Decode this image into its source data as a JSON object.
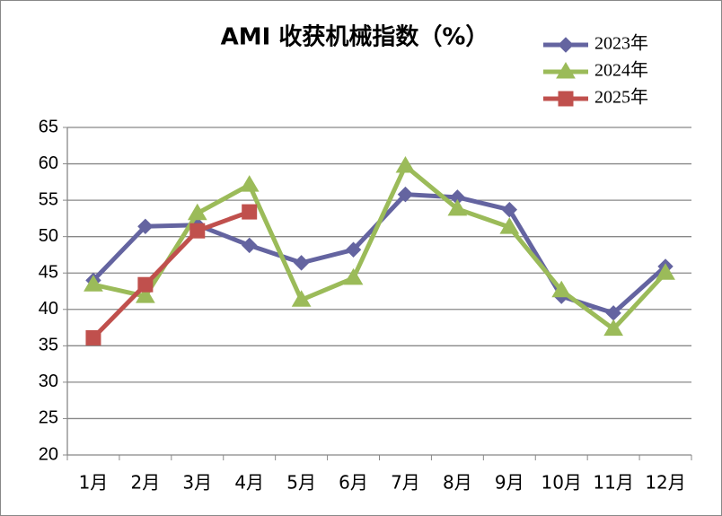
{
  "chart_data": {
    "type": "line",
    "title": "AMI 收获机械指数（%）",
    "categories": [
      "1月",
      "2月",
      "3月",
      "4月",
      "5月",
      "6月",
      "7月",
      "8月",
      "9月",
      "10月",
      "11月",
      "12月"
    ],
    "series": [
      {
        "name": "2023年",
        "color": "#6464a0",
        "marker": "diamond",
        "values": [
          44.0,
          51.4,
          51.6,
          48.8,
          46.4,
          48.2,
          55.8,
          55.4,
          53.7,
          41.8,
          39.5,
          45.9
        ]
      },
      {
        "name": "2024年",
        "color": "#9bbb59",
        "marker": "triangle",
        "values": [
          43.4,
          41.8,
          53.2,
          57.1,
          41.3,
          44.3,
          59.7,
          53.8,
          51.3,
          42.6,
          37.3,
          45.0
        ]
      },
      {
        "name": "2025年",
        "color": "#c0504d",
        "marker": "square",
        "values": [
          36.1,
          43.4,
          50.8,
          53.4,
          null,
          null,
          null,
          null,
          null,
          null,
          null,
          null
        ]
      }
    ],
    "ylim": [
      20,
      65
    ],
    "yticks": [
      20,
      25,
      30,
      35,
      40,
      45,
      50,
      55,
      60,
      65
    ],
    "grid": true,
    "legend": "top-right"
  }
}
